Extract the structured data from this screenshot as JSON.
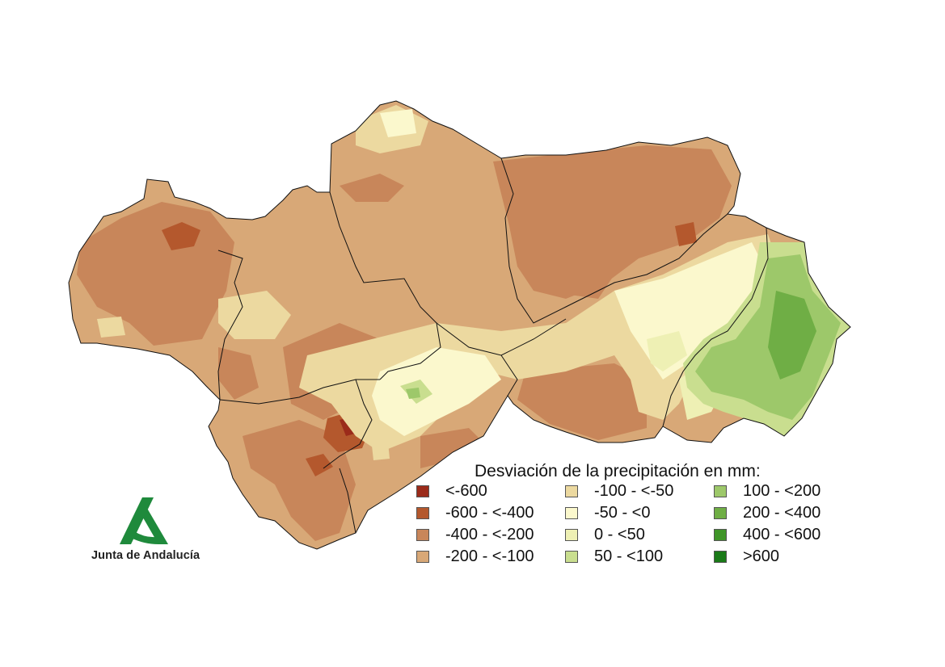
{
  "legend": {
    "title": "Desviación de la precipitación en mm:",
    "classes": [
      {
        "label": "<-600",
        "color": "#9b2b1a"
      },
      {
        "label": "-600 - <-400",
        "color": "#b4582d"
      },
      {
        "label": "-400 - <-200",
        "color": "#c8865a"
      },
      {
        "label": "-200 - <-100",
        "color": "#d8a877"
      },
      {
        "label": "-100 - <-50",
        "color": "#ecd9a0"
      },
      {
        "label": "-50 - <0",
        "color": "#fbf8cd"
      },
      {
        "label": "0 - <50",
        "color": "#eef0b4"
      },
      {
        "label": "50 - <100",
        "color": "#c9de8f"
      },
      {
        "label": "100 - <200",
        "color": "#9dc86a"
      },
      {
        "label": "200 - <400",
        "color": "#6fae45"
      },
      {
        "label": "400 - <600",
        "color": "#3f9528"
      },
      {
        "label": ">600",
        "color": "#1a7a18"
      }
    ]
  },
  "logo": {
    "text": "Junta de Andalucía",
    "icon": "junta-andalucia-a-logo",
    "color": "#1f8a3c"
  },
  "colors": {
    "boundary": "#111111",
    "background": "#ffffff"
  }
}
